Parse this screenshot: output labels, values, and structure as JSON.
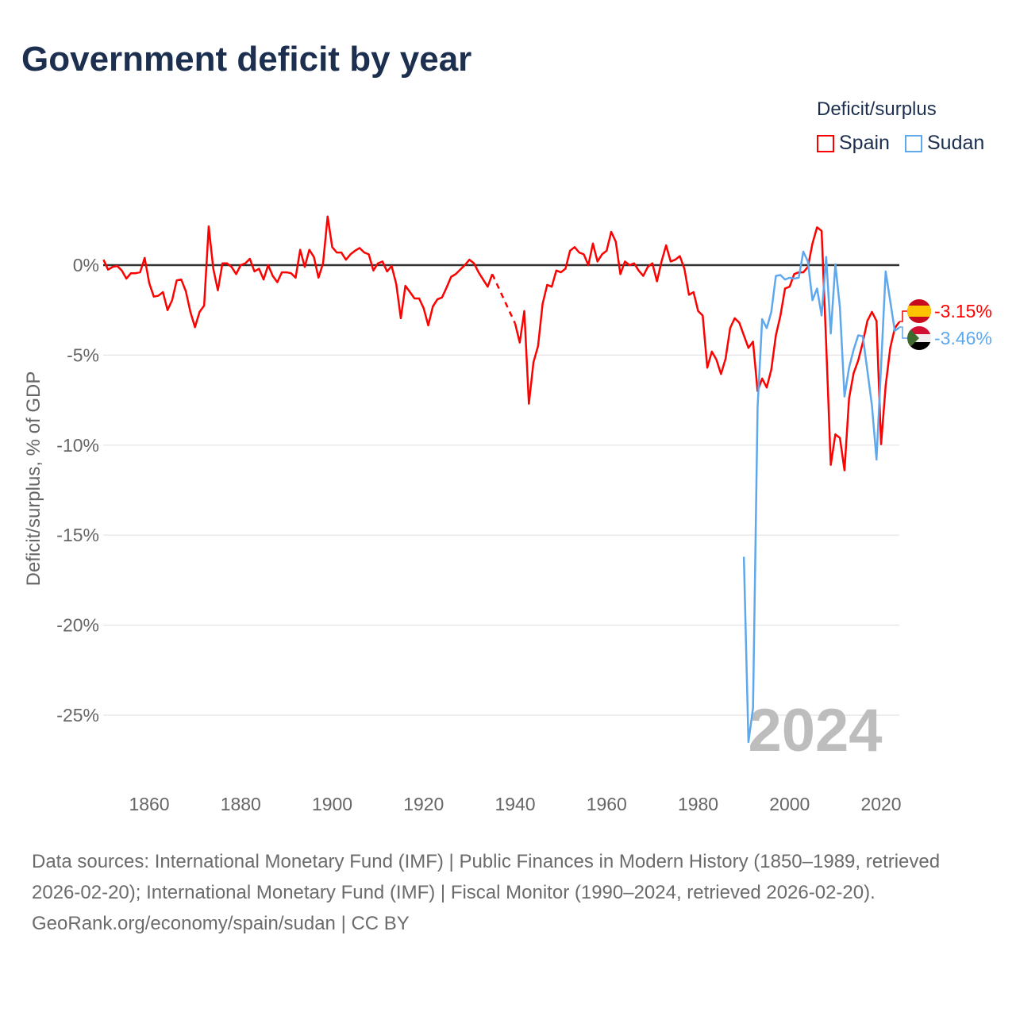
{
  "title": "Government deficit by year",
  "legend": {
    "title": "Deficit/surplus",
    "items": [
      {
        "name": "Spain",
        "color": "#ff0000"
      },
      {
        "name": "Sudan",
        "color": "#5ea8ee"
      }
    ]
  },
  "year_watermark": "2024",
  "chart_data": {
    "type": "line",
    "title": "Government deficit by year",
    "xlabel": "",
    "ylabel": "Deficit/surplus, % of GDP",
    "xlim": [
      1850,
      2024
    ],
    "ylim": [
      -28,
      3
    ],
    "x_ticks": [
      1860,
      1880,
      1900,
      1920,
      1940,
      1960,
      1980,
      2000,
      2020
    ],
    "x_tick_labels": [
      "1860",
      "1880",
      "1900",
      "1920",
      "1940",
      "1960",
      "1980",
      "2000",
      "2020"
    ],
    "y_ticks": [
      0,
      -5,
      -10,
      -15,
      -20,
      -25
    ],
    "y_tick_labels": [
      "0%",
      "-5%",
      "-10%",
      "-15%",
      "-20%",
      "-25%"
    ],
    "grid": true,
    "legend_position": "top-right",
    "series": [
      {
        "name": "Spain",
        "color": "#ff0000",
        "start_year": 1850,
        "end_label": "-3.15%",
        "values": [
          0.3,
          -0.25,
          -0.1,
          -0.05,
          -0.3,
          -0.75,
          -0.45,
          -0.45,
          -0.4,
          0.4,
          -1.0,
          -1.75,
          -1.7,
          -1.5,
          -2.5,
          -1.95,
          -0.85,
          -0.8,
          -1.45,
          -2.6,
          -3.45,
          -2.6,
          -2.25,
          2.15,
          -0.2,
          -1.4,
          0.1,
          0.1,
          -0.1,
          -0.5,
          0.0,
          0.1,
          0.35,
          -0.35,
          -0.2,
          -0.8,
          0.0,
          -0.6,
          -0.95,
          -0.4,
          -0.4,
          -0.45,
          -0.7,
          0.85,
          -0.1,
          0.85,
          0.45,
          -0.7,
          0.1,
          2.7,
          1.0,
          0.7,
          0.7,
          0.3,
          0.6,
          0.8,
          0.95,
          0.7,
          0.6,
          -0.3,
          0.1,
          0.2,
          -0.35,
          -0.05,
          -1.05,
          -2.95,
          -1.15,
          -1.5,
          -1.85,
          -1.85,
          -2.4,
          -3.35,
          -2.3,
          -1.9,
          -1.8,
          -1.25,
          -0.65,
          -0.5,
          -0.25,
          0.0,
          0.3,
          0.1,
          -0.4,
          -0.8,
          -1.2,
          -0.5,
          null,
          null,
          null,
          null,
          -3.25,
          -4.3,
          -2.55,
          -7.7,
          -5.4,
          -4.5,
          -2.15,
          -1.1,
          -1.2,
          -0.3,
          -0.4,
          -0.2,
          0.8,
          1.0,
          0.7,
          0.6,
          0.0,
          1.2,
          0.2,
          0.6,
          0.8,
          1.85,
          1.3,
          -0.5,
          0.2,
          0.0,
          0.1,
          -0.3,
          -0.6,
          -0.1,
          0.1,
          -0.9,
          0.2,
          1.1,
          0.2,
          0.3,
          0.5,
          -0.2,
          -1.65,
          -1.5,
          -2.55,
          -2.8,
          -5.7,
          -4.8,
          -5.25,
          -6.05,
          -5.2,
          -3.5,
          -2.95,
          -3.2,
          -3.9,
          -4.6,
          -4.25,
          -7.0,
          -6.3,
          -6.8,
          -5.8,
          -3.9,
          -2.8,
          -1.3,
          -1.2,
          -0.5,
          -0.4,
          -0.4,
          -0.1,
          1.2,
          2.1,
          1.9,
          -4.4,
          -11.1,
          -9.4,
          -9.6,
          -11.4,
          -7.4,
          -6.0,
          -5.3,
          -4.3,
          -3.1,
          -2.6,
          -3.1,
          -9.95,
          -6.7,
          -4.6,
          -3.5,
          -3.15
        ]
      },
      {
        "name": "Sudan",
        "color": "#5ea8ee",
        "start_year": 1990,
        "end_label": "-3.46%",
        "values": [
          -16.2,
          -26.5,
          -24.6,
          -7.9,
          -3.0,
          -3.5,
          -2.6,
          -0.6,
          -0.55,
          -0.8,
          -0.7,
          -0.75,
          -0.7,
          0.75,
          0.2,
          -1.95,
          -1.3,
          -2.8,
          0.45,
          -3.8,
          0.05,
          -2.35,
          -7.3,
          -5.7,
          -4.7,
          -3.9,
          -3.95,
          -5.85,
          -7.8,
          -10.8,
          -5.6,
          -0.35,
          -2.0,
          -3.65,
          -3.46
        ]
      }
    ]
  },
  "footer": {
    "sources": "Data sources: International Monetary Fund (IMF) | Public Finances in Modern History (1850–1989, retrieved 2026-02-20); International Monetary Fund (IMF) | Fiscal Monitor (1990–2024, retrieved 2026-02-20).",
    "credit": "GeoRank.org/economy/spain/sudan | CC BY"
  }
}
